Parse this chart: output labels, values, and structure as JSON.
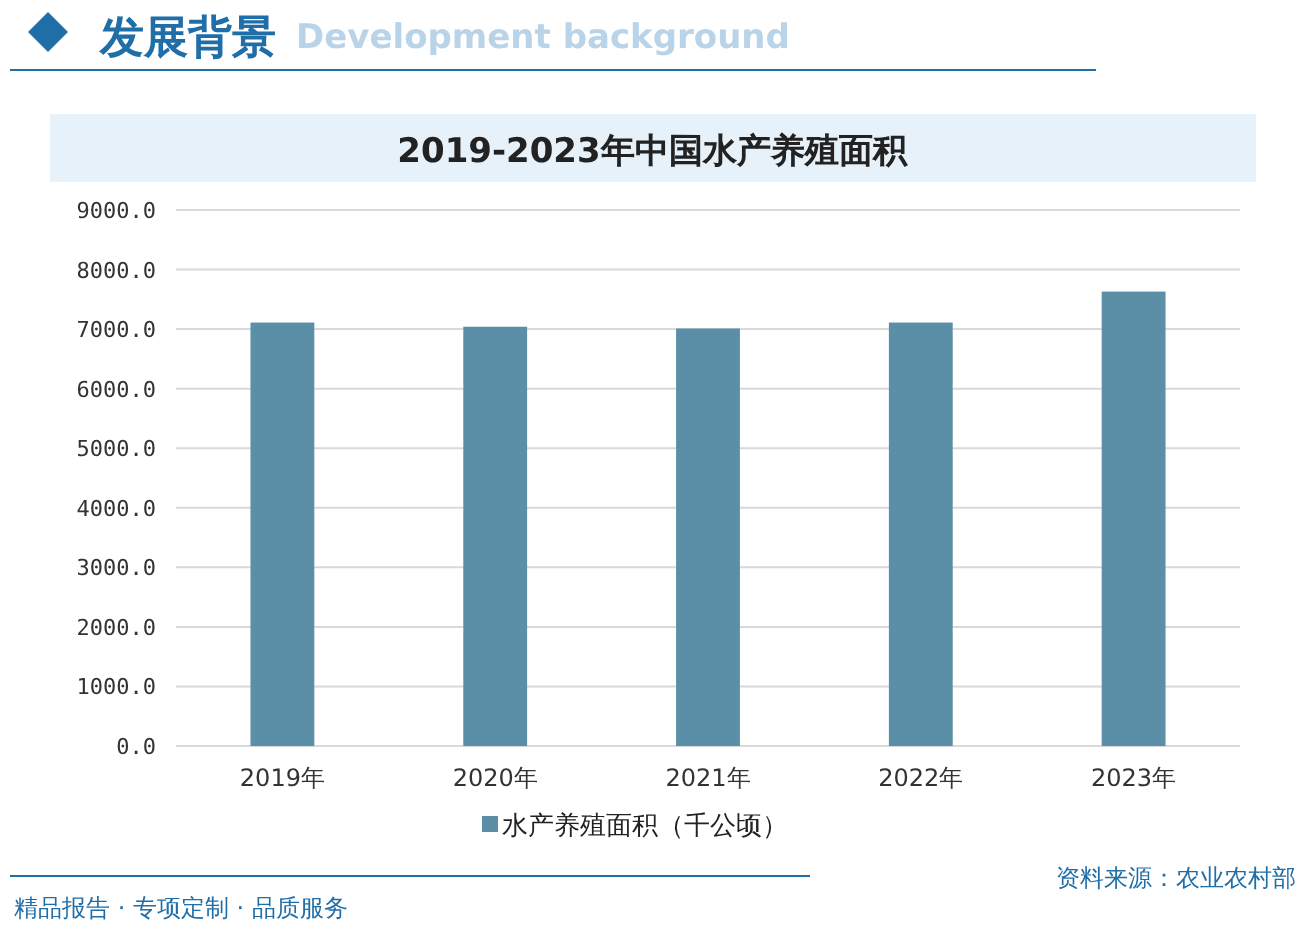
{
  "chart_data": {
    "type": "bar",
    "title": "2019-2023年中国水产养殖面积",
    "categories": [
      "2019年",
      "2020年",
      "2021年",
      "2022年",
      "2023年"
    ],
    "series": [
      {
        "name": "水产养殖面积（千公顷）",
        "color": "#5b8fa8",
        "values": [
          7110,
          7040,
          7010,
          7110,
          7630
        ]
      }
    ],
    "ylim": [
      0,
      9000
    ],
    "yticks": [
      {
        "value": 0,
        "label": "0.0"
      },
      {
        "value": 1000,
        "label": "1000.0"
      },
      {
        "value": 2000,
        "label": "2000.0"
      },
      {
        "value": 3000,
        "label": "3000.0"
      },
      {
        "value": 4000,
        "label": "4000.0"
      },
      {
        "value": 5000,
        "label": "5000.0"
      },
      {
        "value": 6000,
        "label": "6000.0"
      },
      {
        "value": 7000,
        "label": "7000.0"
      },
      {
        "value": 8000,
        "label": "8000.0"
      },
      {
        "value": 9000,
        "label": "9000.0"
      }
    ],
    "grid": "y",
    "legend": "bottom",
    "annotations": [
      "发展背景",
      "Development background",
      "资料来源：农业农村部",
      "精品报告 · 专项定制 · 品质服务"
    ]
  }
}
